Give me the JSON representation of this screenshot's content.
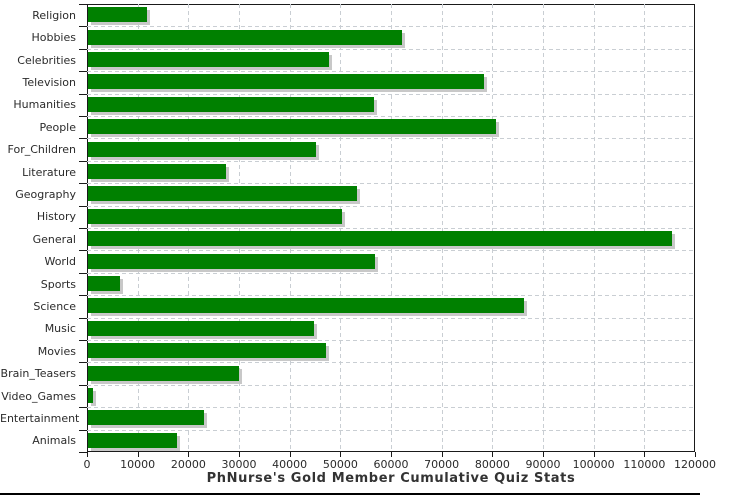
{
  "title": "PhNurse's Gold Member Cumulative Quiz Stats",
  "chart_data": {
    "type": "bar",
    "orientation": "horizontal",
    "title": "PhNurse's Gold Member Cumulative Quiz Stats",
    "xlabel": "",
    "ylabel": "",
    "categories": [
      "Religion",
      "Hobbies",
      "Celebrities",
      "Television",
      "Humanities",
      "People",
      "For_Children",
      "Literature",
      "Geography",
      "History",
      "General",
      "World",
      "Sports",
      "Science",
      "Music",
      "Movies",
      "Brain_Teasers",
      "Video_Games",
      "Entertainment",
      "Animals"
    ],
    "values": [
      11700,
      61900,
      47500,
      78200,
      56400,
      80600,
      45000,
      27300,
      53000,
      50100,
      115200,
      56700,
      6300,
      86000,
      44700,
      47000,
      29900,
      900,
      22900,
      17500
    ],
    "xlim": [
      0,
      120000
    ],
    "x_ticks": [
      0,
      10000,
      20000,
      30000,
      40000,
      50000,
      60000,
      70000,
      80000,
      90000,
      100000,
      110000,
      120000
    ],
    "x_tick_labels": [
      "0",
      "10000",
      "20000",
      "30000",
      "40000",
      "50000",
      "60000",
      "70000",
      "80000",
      "90000",
      "100000",
      "110000",
      "120000"
    ],
    "grid": true,
    "legend": false,
    "colors": {
      "bar": "#008000",
      "bar_shadow": "#c8c8c8",
      "grid": "#c9ced3",
      "axis": "#1a1a1a",
      "text": "#2b2b2b",
      "title_text": "#333333",
      "background": "#ffffff",
      "bottom_rule": "#000000"
    }
  }
}
